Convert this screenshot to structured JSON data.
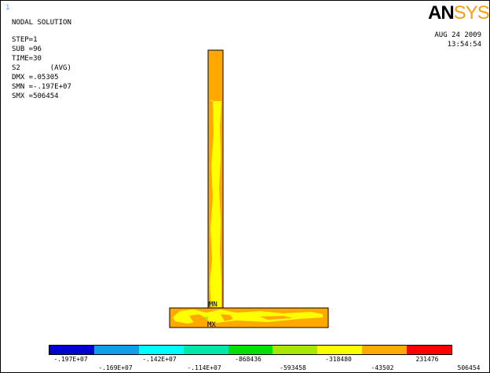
{
  "window_number": "1",
  "title": "NODAL SOLUTION",
  "info": {
    "step": "STEP=1",
    "sub": "SUB =96",
    "time": "TIME=30",
    "result": "S2       (AVG)",
    "dmx": "DMX =.05305",
    "smn": "SMN =-.197E+07",
    "smx": "SMX =506454"
  },
  "logo": {
    "an": "AN",
    "sys": "SYS"
  },
  "date": "AUG 24 2009",
  "time_of_day": "13:54:54",
  "markers": {
    "min": "MN",
    "max": "MX"
  },
  "legend": {
    "colors": [
      "#0000d0",
      "#0f9ee8",
      "#00ffff",
      "#00e8a8",
      "#00e000",
      "#a8e800",
      "#ffff00",
      "#ffa800",
      "#ff0000"
    ],
    "labels_top": [
      "-.197E+07",
      "-.142E+07",
      "-868436",
      "-318480",
      "231476"
    ],
    "labels_bottom": [
      "-.169E+07",
      "-.114E+07",
      "-593458",
      "-43502",
      "506454"
    ]
  }
}
